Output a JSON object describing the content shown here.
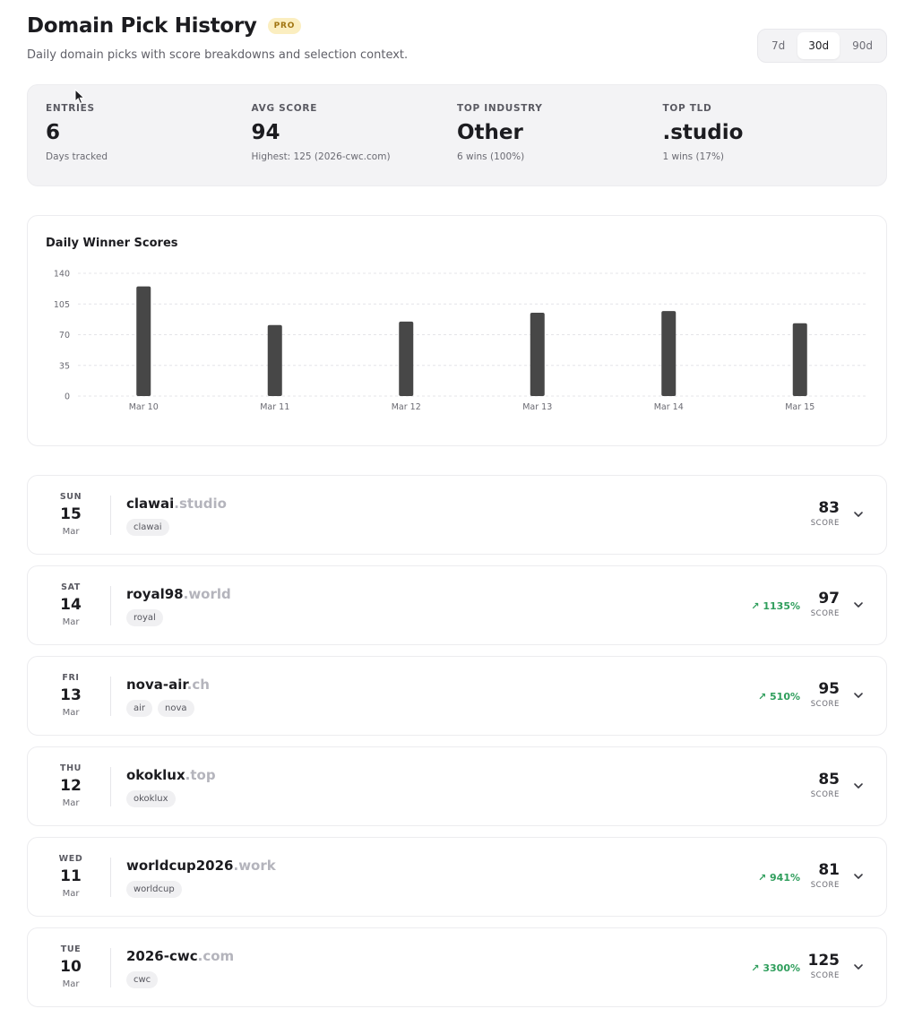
{
  "header": {
    "title": "Domain Pick History",
    "badge": "PRO",
    "subtitle": "Daily domain picks with score breakdowns and selection context."
  },
  "range": {
    "options": [
      "7d",
      "30d",
      "90d"
    ],
    "selected": "30d"
  },
  "stats": [
    {
      "label": "ENTRIES",
      "value": "6",
      "sub": "Days tracked"
    },
    {
      "label": "AVG SCORE",
      "value": "94",
      "sub": "Highest: 125 (2026-cwc.com)"
    },
    {
      "label": "TOP INDUSTRY",
      "value": "Other",
      "sub": "6 wins (100%)"
    },
    {
      "label": "TOP TLD",
      "value": ".studio",
      "sub": "1 wins (17%)"
    }
  ],
  "chart_title": "Daily Winner Scores",
  "chart_data": {
    "type": "bar",
    "title": "Daily Winner Scores",
    "categories": [
      "Mar 10",
      "Mar 11",
      "Mar 12",
      "Mar 13",
      "Mar 14",
      "Mar 15"
    ],
    "values": [
      125,
      81,
      85,
      95,
      97,
      83
    ],
    "ylim": [
      0,
      140
    ],
    "yticks": [
      0,
      35,
      70,
      105,
      140
    ],
    "grid": true,
    "bar_color": "#474747"
  },
  "entries": [
    {
      "dow": "SUN",
      "day": "15",
      "mon": "Mar",
      "name": "clawai",
      "tld": ".studio",
      "tags": [
        "clawai"
      ],
      "trend": "",
      "score": "83",
      "score_label": "SCORE"
    },
    {
      "dow": "SAT",
      "day": "14",
      "mon": "Mar",
      "name": "royal98",
      "tld": ".world",
      "tags": [
        "royal"
      ],
      "trend": "1135%",
      "score": "97",
      "score_label": "SCORE"
    },
    {
      "dow": "FRI",
      "day": "13",
      "mon": "Mar",
      "name": "nova-air",
      "tld": ".ch",
      "tags": [
        "air",
        "nova"
      ],
      "trend": "510%",
      "score": "95",
      "score_label": "SCORE"
    },
    {
      "dow": "THU",
      "day": "12",
      "mon": "Mar",
      "name": "okoklux",
      "tld": ".top",
      "tags": [
        "okoklux"
      ],
      "trend": "",
      "score": "85",
      "score_label": "SCORE"
    },
    {
      "dow": "WED",
      "day": "11",
      "mon": "Mar",
      "name": "worldcup2026",
      "tld": ".work",
      "tags": [
        "worldcup"
      ],
      "trend": "941%",
      "score": "81",
      "score_label": "SCORE"
    },
    {
      "dow": "TUE",
      "day": "10",
      "mon": "Mar",
      "name": "2026-cwc",
      "tld": ".com",
      "tags": [
        "cwc"
      ],
      "trend": "3300%",
      "score": "125",
      "score_label": "SCORE"
    }
  ],
  "colors": {
    "trend_up": "#2f9e5c",
    "badge_bg": "#fbeec0",
    "badge_fg": "#a07410"
  }
}
